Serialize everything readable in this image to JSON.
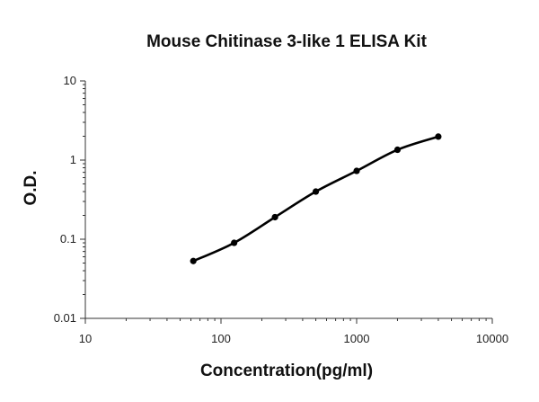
{
  "chart_data": {
    "type": "line",
    "title": "Mouse Chitinase 3-like 1 ELISA Kit",
    "xlabel": "Concentration(pg/ml)",
    "ylabel": "O.D.",
    "x_scale": "log",
    "y_scale": "log",
    "xlim": [
      10,
      10000
    ],
    "ylim": [
      0.01,
      10
    ],
    "x_ticks": [
      "10",
      "100",
      "1000",
      "10000"
    ],
    "y_ticks": [
      "10",
      "1",
      "0.1",
      "0.01"
    ],
    "grid": false,
    "legend": "none",
    "series": [
      {
        "x": [
          62.5,
          125,
          250,
          500,
          1000,
          2000,
          4000
        ],
        "y": [
          0.053,
          0.09,
          0.19,
          0.4,
          0.73,
          1.35,
          1.98
        ]
      }
    ],
    "colors": {
      "line": "#000000",
      "axis": "#333333",
      "text": "#111111"
    }
  }
}
